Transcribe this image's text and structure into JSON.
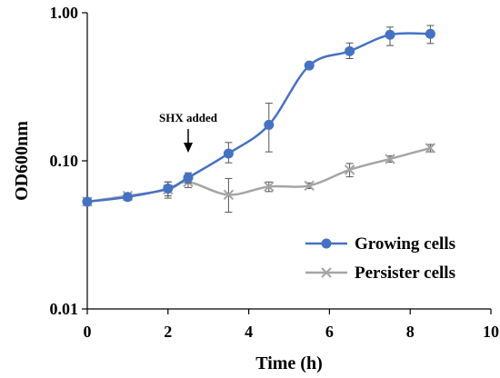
{
  "chart_data": {
    "type": "line",
    "title": "",
    "xlabel": "Time (h)",
    "ylabel": "OD600nm",
    "xlim": [
      0,
      10
    ],
    "ylim": [
      0.01,
      1.0
    ],
    "y_scale": "log",
    "x_ticks": [
      0,
      2,
      4,
      6,
      8,
      10
    ],
    "y_ticks": [
      0.01,
      0.1,
      1.0
    ],
    "y_tick_labels": [
      "0.01",
      "0.10",
      "1.00"
    ],
    "grid": false,
    "legend_position": "bottom-right",
    "annotation": {
      "text": "SHX added",
      "x": 2.5
    },
    "series": [
      {
        "name": "Growing cells",
        "color": "#4472C4",
        "marker": "circle",
        "x": [
          0,
          1,
          2,
          2.5,
          3.5,
          4.5,
          5.5,
          6.5,
          7.5,
          8.5
        ],
        "y": [
          0.053,
          0.057,
          0.065,
          0.077,
          0.112,
          0.175,
          0.44,
          0.55,
          0.71,
          0.72
        ],
        "err_low": [
          0.051,
          0.054,
          0.058,
          0.071,
          0.097,
          0.115,
          0.43,
          0.49,
          0.6,
          0.62
        ],
        "err_high": [
          0.055,
          0.06,
          0.072,
          0.083,
          0.133,
          0.245,
          0.455,
          0.625,
          0.8,
          0.82
        ]
      },
      {
        "name": "Persister cells",
        "color": "#A5A5A5",
        "marker": "x",
        "x": [
          0,
          1,
          2,
          2.5,
          3.5,
          4.5,
          5.5,
          6.5,
          7.5,
          8.5
        ],
        "y": [
          0.053,
          0.058,
          0.064,
          0.072,
          0.059,
          0.067,
          0.068,
          0.087,
          0.103,
          0.122
        ],
        "err_low": [
          0.051,
          0.056,
          0.056,
          0.066,
          0.045,
          0.062,
          0.065,
          0.078,
          0.098,
          0.115
        ],
        "err_high": [
          0.055,
          0.06,
          0.072,
          0.078,
          0.076,
          0.072,
          0.071,
          0.096,
          0.108,
          0.129
        ]
      }
    ]
  }
}
